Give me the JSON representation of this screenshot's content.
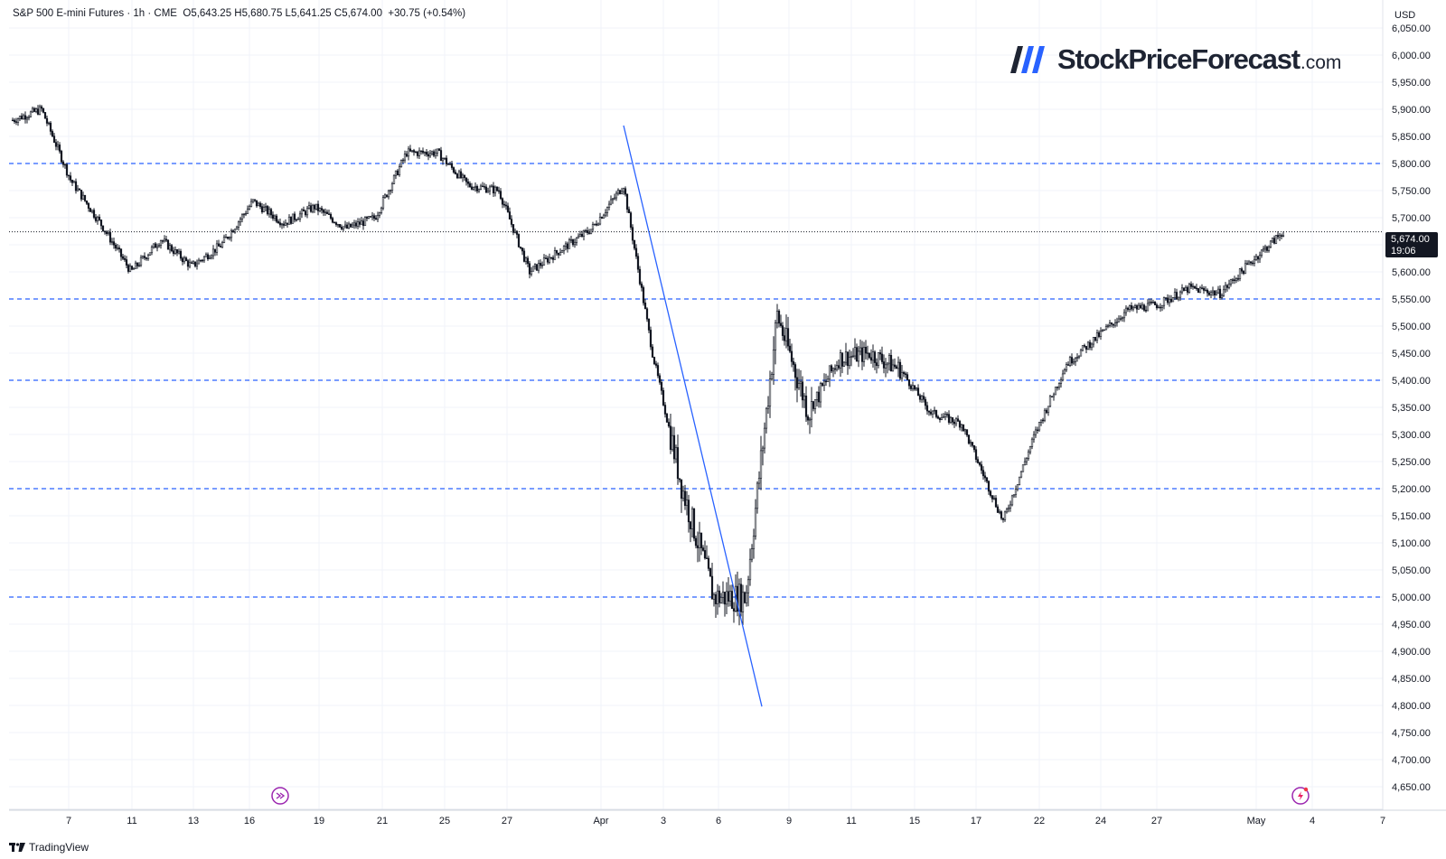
{
  "header": {
    "symbol": "S&P 500 E-mini Futures",
    "interval": "1h",
    "exchange": "CME",
    "ohlc": "O5,643.25  H5,680.75  L5,641.25  C5,674.00",
    "change": "+30.75 (+0.54%)"
  },
  "currency": "USD",
  "brand": {
    "main": "StockPriceForecast",
    "domain": ".com"
  },
  "footer_logo": "TradingView",
  "last_price": {
    "value": "5,674.00",
    "countdown": "19:06"
  },
  "colors": {
    "candle": "#131722",
    "level": "#2962ff",
    "trendline": "#2962ff",
    "grid": "#f0f3fa",
    "icon": "#9c27b0"
  },
  "icons": {
    "left": "replay-arrow-icon",
    "right": "lightning-icon"
  },
  "chart_data": {
    "type": "candlestick",
    "ylim": [
      4640,
      6055
    ],
    "yticks": [
      4650,
      4700,
      4750,
      4800,
      4850,
      4900,
      4950,
      5000,
      5050,
      5100,
      5150,
      5200,
      5250,
      5300,
      5350,
      5400,
      5450,
      5500,
      5550,
      5600,
      5650,
      5700,
      5750,
      5800,
      5850,
      5900,
      5950,
      6000,
      6050
    ],
    "xticks": [
      "7",
      "11",
      "13",
      "16",
      "19",
      "21",
      "25",
      "27",
      "Apr",
      "3",
      "6",
      "9",
      "11",
      "15",
      "17",
      "22",
      "24",
      "27",
      "May",
      "4",
      "7"
    ],
    "horizontal_levels": [
      5800,
      5550,
      5400,
      5200,
      5000
    ],
    "last_price": 5674,
    "trendline": {
      "from": [
        "Apr 2",
        5870
      ],
      "to": [
        "Apr 8",
        4798
      ]
    },
    "anchors": [
      [
        "Mar 5",
        5880
      ],
      [
        "Mar 6",
        5900
      ],
      [
        "Mar 7",
        5770
      ],
      [
        "Mar 10",
        5690
      ],
      [
        "Mar 11",
        5600
      ],
      [
        "Mar 12",
        5660
      ],
      [
        "Mar 13",
        5610
      ],
      [
        "Mar 14",
        5650
      ],
      [
        "Mar 17",
        5730
      ],
      [
        "Mar 18",
        5690
      ],
      [
        "Mar 19",
        5720
      ],
      [
        "Mar 20",
        5680
      ],
      [
        "Mar 21",
        5700
      ],
      [
        "Mar 24",
        5820
      ],
      [
        "Mar 25",
        5820
      ],
      [
        "Mar 26",
        5760
      ],
      [
        "Mar 27",
        5750
      ],
      [
        "Mar 28",
        5600
      ],
      [
        "Mar 31",
        5640
      ],
      [
        "Apr 1",
        5680
      ],
      [
        "Apr 2",
        5760
      ],
      [
        "Apr 3",
        5450
      ],
      [
        "Apr 4",
        5200
      ],
      [
        "Apr 7",
        5000
      ],
      [
        "Apr 8",
        5000
      ],
      [
        "Apr 9",
        5520
      ],
      [
        "Apr 10",
        5340
      ],
      [
        "Apr 11",
        5440
      ],
      [
        "Apr 14",
        5450
      ],
      [
        "Apr 15",
        5420
      ],
      [
        "Apr 16",
        5340
      ],
      [
        "Apr 17",
        5320
      ],
      [
        "Apr 21",
        5140
      ],
      [
        "Apr 22",
        5300
      ],
      [
        "Apr 23",
        5430
      ],
      [
        "Apr 24",
        5480
      ],
      [
        "Apr 25",
        5530
      ],
      [
        "Apr 28",
        5540
      ],
      [
        "Apr 29",
        5570
      ],
      [
        "Apr 30",
        5560
      ],
      [
        "May 1",
        5620
      ],
      [
        "May 2",
        5674
      ]
    ]
  }
}
